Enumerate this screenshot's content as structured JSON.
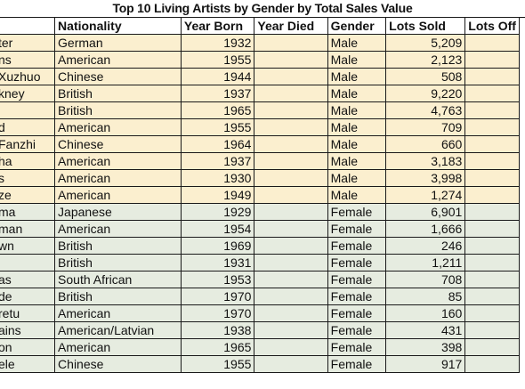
{
  "title": "Top 10 Living Artists by Gender by Total Sales Value",
  "headers": [
    "",
    "Nationality",
    "Year Born",
    "Year Died",
    "Gender",
    "Lots Sold",
    "Lots Off"
  ],
  "rows": [
    {
      "name": "ter",
      "nationality": "German",
      "born": "1932",
      "died": "",
      "gender": "Male",
      "lots_sold": "5,209"
    },
    {
      "name": "ns",
      "nationality": "American",
      "born": "1955",
      "died": "",
      "gender": "Male",
      "lots_sold": "2,123"
    },
    {
      "name": "Xuzhuo",
      "nationality": "Chinese",
      "born": "1944",
      "died": "",
      "gender": "Male",
      "lots_sold": "508"
    },
    {
      "name": "kney",
      "nationality": "British",
      "born": "1937",
      "died": "",
      "gender": "Male",
      "lots_sold": "9,220"
    },
    {
      "name": "",
      "nationality": "British",
      "born": "1965",
      "died": "",
      "gender": "Male",
      "lots_sold": "4,763"
    },
    {
      "name": "d",
      "nationality": "American",
      "born": "1955",
      "died": "",
      "gender": "Male",
      "lots_sold": "709"
    },
    {
      "name": "Fanzhi",
      "nationality": "Chinese",
      "born": "1964",
      "died": "",
      "gender": "Male",
      "lots_sold": "660"
    },
    {
      "name": "ha",
      "nationality": "American",
      "born": "1937",
      "died": "",
      "gender": "Male",
      "lots_sold": "3,183"
    },
    {
      "name": "s",
      "nationality": "American",
      "born": "1930",
      "died": "",
      "gender": "Male",
      "lots_sold": "3,998"
    },
    {
      "name": "ze",
      "nationality": "American",
      "born": "1949",
      "died": "",
      "gender": "Male",
      "lots_sold": "1,274"
    },
    {
      "name": "ma",
      "nationality": "Japanese",
      "born": "1929",
      "died": "",
      "gender": "Female",
      "lots_sold": "6,901"
    },
    {
      "name": "man",
      "nationality": "American",
      "born": "1954",
      "died": "",
      "gender": "Female",
      "lots_sold": "1,666"
    },
    {
      "name": "wn",
      "nationality": "British",
      "born": "1969",
      "died": "",
      "gender": "Female",
      "lots_sold": "246"
    },
    {
      "name": "",
      "nationality": "British",
      "born": "1931",
      "died": "",
      "gender": "Female",
      "lots_sold": "1,211"
    },
    {
      "name": "as",
      "nationality": "South African",
      "born": "1953",
      "died": "",
      "gender": "Female",
      "lots_sold": "708"
    },
    {
      "name": "de",
      "nationality": "British",
      "born": "1970",
      "died": "",
      "gender": "Female",
      "lots_sold": "85"
    },
    {
      "name": "retu",
      "nationality": "American",
      "born": "1970",
      "died": "",
      "gender": "Female",
      "lots_sold": "160"
    },
    {
      "name": "ains",
      "nationality": "American/Latvian",
      "born": "1938",
      "died": "",
      "gender": "Female",
      "lots_sold": "431"
    },
    {
      "name": "on",
      "nationality": "American",
      "born": "1965",
      "died": "",
      "gender": "Female",
      "lots_sold": "398"
    },
    {
      "name": "ele",
      "nationality": "Chinese",
      "born": "1955",
      "died": "",
      "gender": "Female",
      "lots_sold": "917"
    }
  ],
  "colors": {
    "male_row": "#fbefcf",
    "female_row": "#e6ece0",
    "border": "#1a1a1a"
  }
}
